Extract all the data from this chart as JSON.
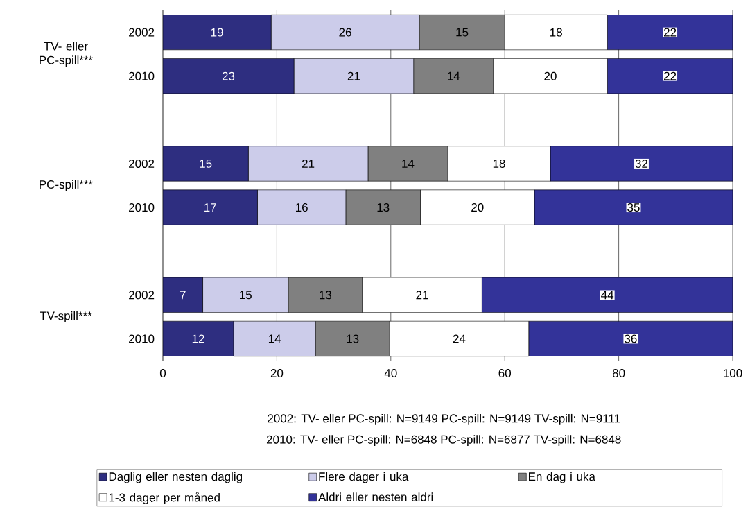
{
  "chart_data": {
    "type": "bar",
    "orientation": "horizontal",
    "stacked": true,
    "categories": [
      "2002",
      "2010",
      "2002",
      "2010",
      "2002",
      "2010"
    ],
    "series": [
      {
        "name": "Daglig eller nesten daglig",
        "color": "#2e2e80",
        "values": [
          19,
          23,
          15,
          16.6,
          7,
          12.4
        ],
        "value_labels": [
          "19",
          "23",
          "15",
          "17",
          "7",
          "12"
        ]
      },
      {
        "name": "Flere dager i uka",
        "color": "#ccccea",
        "values": [
          26,
          21,
          21,
          15.5,
          15,
          14.4
        ],
        "value_labels": [
          "26",
          "21",
          "21",
          "16",
          "15",
          "14"
        ]
      },
      {
        "name": "En dag i uka",
        "color": "#808080",
        "values": [
          15,
          14,
          14,
          13.1,
          13,
          13.0
        ],
        "value_labels": [
          "15",
          "14",
          "14",
          "13",
          "13",
          "13"
        ]
      },
      {
        "name": "1-3 dager per måned",
        "color": "#ffffff",
        "values": [
          18,
          20,
          18,
          20.0,
          21,
          24.4
        ],
        "value_labels": [
          "18",
          "20",
          "18",
          "20",
          "21",
          "24"
        ]
      },
      {
        "name": "Aldri eller nesten aldri",
        "color": "#333399",
        "values": [
          22,
          22,
          32,
          34.8,
          44,
          35.8
        ],
        "value_labels": [
          "22",
          "22",
          "32",
          "35",
          "44",
          "36"
        ]
      }
    ],
    "annotations": [
      "TV- eller PC-spill***",
      "PC-spill***",
      "TV-spill***",
      "2002: TV- eller PC-spill: N=9149  PC-spill: N=9149  TV-spill: N=9111",
      "2010: TV- eller PC-spill: N=6848  PC-spill: N=6877  TV-spill: N=6848"
    ],
    "xlim": [
      0,
      100
    ],
    "xticks": [
      0,
      20,
      40,
      60,
      80,
      100
    ],
    "grid": "x",
    "legend": "bottom"
  }
}
